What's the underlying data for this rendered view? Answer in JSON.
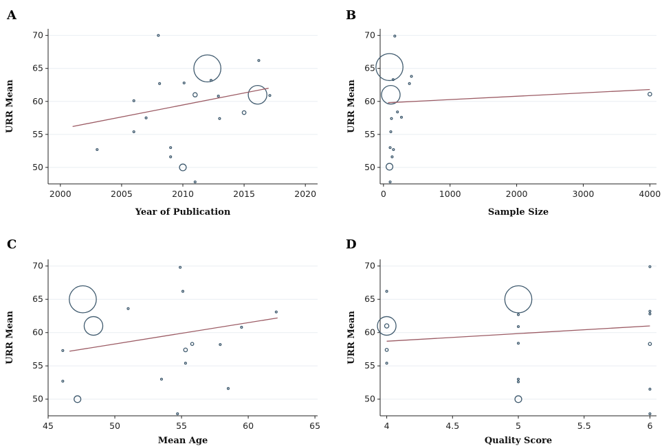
{
  "colors": {
    "bubble": "#3f5a6e",
    "fit_line": "#9b5a63",
    "grid": "#e9eef2"
  },
  "chart_data": [
    {
      "panel_label": "A",
      "type": "scatter",
      "xlabel": "Year of Publication",
      "ylabel": "URR Mean",
      "xlim": [
        1999,
        2021
      ],
      "ylim": [
        47.5,
        71
      ],
      "xticks": [
        2000,
        2005,
        2010,
        2015,
        2020
      ],
      "yticks": [
        50,
        55,
        60,
        65,
        70
      ],
      "grid": true,
      "points": [
        {
          "x": 2012,
          "y": 65,
          "w": 80
        },
        {
          "x": 2016.1,
          "y": 61,
          "w": 38
        },
        {
          "x": 2010,
          "y": 50,
          "w": 5
        },
        {
          "x": 2011,
          "y": 61,
          "w": 2
        },
        {
          "x": 2015,
          "y": 58.3,
          "w": 1.5
        },
        {
          "x": 2008,
          "y": 70,
          "w": 0.4
        },
        {
          "x": 2016.2,
          "y": 66.2,
          "w": 0.4
        },
        {
          "x": 2012.3,
          "y": 63.2,
          "w": 0.4
        },
        {
          "x": 2008.1,
          "y": 62.7,
          "w": 0.4
        },
        {
          "x": 2010.1,
          "y": 62.8,
          "w": 0.4
        },
        {
          "x": 2012.9,
          "y": 60.8,
          "w": 0.4
        },
        {
          "x": 2006,
          "y": 60.1,
          "w": 0.4
        },
        {
          "x": 2017.1,
          "y": 60.9,
          "w": 0.4
        },
        {
          "x": 2007,
          "y": 57.5,
          "w": 0.4
        },
        {
          "x": 2013,
          "y": 57.4,
          "w": 0.4
        },
        {
          "x": 2006,
          "y": 55.4,
          "w": 0.4
        },
        {
          "x": 2003,
          "y": 52.7,
          "w": 0.4
        },
        {
          "x": 2009,
          "y": 53,
          "w": 0.4
        },
        {
          "x": 2009,
          "y": 51.6,
          "w": 0.4
        },
        {
          "x": 2011,
          "y": 47.8,
          "w": 0.4
        }
      ],
      "fit": {
        "x": [
          2001,
          2017
        ],
        "y": [
          56.2,
          62
        ]
      }
    },
    {
      "panel_label": "B",
      "type": "scatter",
      "xlabel": "Sample Size",
      "ylabel": "URR Mean",
      "xlim": [
        -50,
        4100
      ],
      "ylim": [
        47.5,
        71
      ],
      "xticks": [
        0,
        1000,
        2000,
        3000,
        4000
      ],
      "yticks": [
        50,
        55,
        60,
        65,
        70
      ],
      "grid": true,
      "points": [
        {
          "x": 90,
          "y": 65.2,
          "w": 80
        },
        {
          "x": 110,
          "y": 61,
          "w": 38
        },
        {
          "x": 90,
          "y": 50.1,
          "w": 5
        },
        {
          "x": 4000,
          "y": 61.1,
          "w": 1.5
        },
        {
          "x": 170,
          "y": 69.9,
          "w": 0.4
        },
        {
          "x": 420,
          "y": 63.8,
          "w": 0.4
        },
        {
          "x": 390,
          "y": 62.7,
          "w": 0.4
        },
        {
          "x": 145,
          "y": 63.3,
          "w": 0.4
        },
        {
          "x": 210,
          "y": 58.4,
          "w": 0.4
        },
        {
          "x": 270,
          "y": 57.6,
          "w": 0.4
        },
        {
          "x": 120,
          "y": 57.4,
          "w": 0.4
        },
        {
          "x": 110,
          "y": 55.4,
          "w": 0.4
        },
        {
          "x": 100,
          "y": 53,
          "w": 0.4
        },
        {
          "x": 150,
          "y": 52.7,
          "w": 0.4
        },
        {
          "x": 130,
          "y": 51.6,
          "w": 0.4
        },
        {
          "x": 100,
          "y": 47.8,
          "w": 0.4
        }
      ],
      "fit": {
        "x": [
          70,
          4000
        ],
        "y": [
          59.8,
          61.8
        ]
      }
    },
    {
      "panel_label": "C",
      "type": "scatter",
      "xlabel": "Mean Age",
      "ylabel": "URR Mean",
      "xlim": [
        45,
        65.2
      ],
      "ylim": [
        47.5,
        71
      ],
      "xticks": [
        45,
        50,
        55,
        60,
        65
      ],
      "yticks": [
        50,
        55,
        60,
        65,
        70
      ],
      "grid": true,
      "points": [
        {
          "x": 47.6,
          "y": 65,
          "w": 80
        },
        {
          "x": 48.4,
          "y": 61,
          "w": 38
        },
        {
          "x": 47.2,
          "y": 50,
          "w": 5
        },
        {
          "x": 55.3,
          "y": 57.4,
          "w": 1.5
        },
        {
          "x": 55.8,
          "y": 58.3,
          "w": 1
        },
        {
          "x": 54.9,
          "y": 69.8,
          "w": 0.4
        },
        {
          "x": 55.1,
          "y": 66.2,
          "w": 0.4
        },
        {
          "x": 51,
          "y": 63.6,
          "w": 0.4
        },
        {
          "x": 62.1,
          "y": 63.1,
          "w": 0.4
        },
        {
          "x": 59.5,
          "y": 60.8,
          "w": 0.4
        },
        {
          "x": 57.9,
          "y": 58.2,
          "w": 0.4
        },
        {
          "x": 46.1,
          "y": 57.3,
          "w": 0.4
        },
        {
          "x": 55.3,
          "y": 55.4,
          "w": 0.4
        },
        {
          "x": 53.5,
          "y": 53,
          "w": 0.4
        },
        {
          "x": 46.1,
          "y": 52.7,
          "w": 0.4
        },
        {
          "x": 58.5,
          "y": 51.6,
          "w": 0.4
        },
        {
          "x": 54.7,
          "y": 47.8,
          "w": 0.4
        }
      ],
      "fit": {
        "x": [
          46.6,
          62.2
        ],
        "y": [
          57.2,
          62.2
        ]
      }
    },
    {
      "panel_label": "D",
      "type": "scatter",
      "xlabel": "Quality Score",
      "ylabel": "URR Mean",
      "xlim": [
        3.95,
        6.05
      ],
      "ylim": [
        47.5,
        71
      ],
      "xticks": [
        4,
        4.5,
        5,
        5.5,
        6
      ],
      "yticks": [
        50,
        55,
        60,
        65,
        70
      ],
      "grid": true,
      "points": [
        {
          "x": 5,
          "y": 65,
          "w": 80
        },
        {
          "x": 4,
          "y": 61,
          "w": 38
        },
        {
          "x": 5,
          "y": 50,
          "w": 5
        },
        {
          "x": 4,
          "y": 61,
          "w": 2
        },
        {
          "x": 4,
          "y": 57.4,
          "w": 1
        },
        {
          "x": 6,
          "y": 58.3,
          "w": 1
        },
        {
          "x": 4,
          "y": 66.2,
          "w": 0.4
        },
        {
          "x": 4,
          "y": 55.4,
          "w": 0.4
        },
        {
          "x": 5,
          "y": 62.7,
          "w": 0.4
        },
        {
          "x": 5,
          "y": 60.9,
          "w": 0.4
        },
        {
          "x": 5,
          "y": 58.4,
          "w": 0.4
        },
        {
          "x": 5,
          "y": 53,
          "w": 0.4
        },
        {
          "x": 5,
          "y": 52.6,
          "w": 0.4
        },
        {
          "x": 6,
          "y": 69.9,
          "w": 0.4
        },
        {
          "x": 6,
          "y": 63.2,
          "w": 0.4
        },
        {
          "x": 6,
          "y": 62.8,
          "w": 0.4
        },
        {
          "x": 6,
          "y": 51.5,
          "w": 0.4
        },
        {
          "x": 6,
          "y": 47.8,
          "w": 0.4
        }
      ],
      "fit": {
        "x": [
          4,
          6
        ],
        "y": [
          58.7,
          61
        ]
      }
    }
  ]
}
